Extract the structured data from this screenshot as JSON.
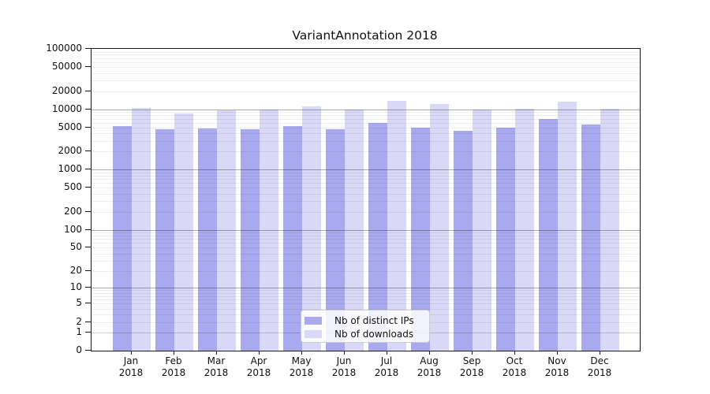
{
  "title": "VariantAnnotation 2018",
  "colors": {
    "distinct_ips": "#a9a9f0",
    "downloads": "#d9d9f7",
    "grid_major": "rgba(0,0,0,0.32)",
    "grid_major_base": "rgba(0,0,0,0.18)",
    "grid_minor": "rgba(60,60,60,0.09)",
    "frame": "#1a1a1a"
  },
  "legend": {
    "items": [
      {
        "label": "Nb of distinct IPs",
        "color": "#a9a9f0"
      },
      {
        "label": "Nb of downloads",
        "color": "#d9d9f7"
      }
    ]
  },
  "axis": {
    "yticks": [
      0,
      1,
      2,
      5,
      10,
      20,
      50,
      100,
      200,
      500,
      1000,
      2000,
      5000,
      10000,
      20000,
      50000,
      100000
    ],
    "year": "2018"
  },
  "chart_data": {
    "type": "bar",
    "title": "VariantAnnotation 2018",
    "categories": [
      "Jan",
      "Feb",
      "Mar",
      "Apr",
      "May",
      "Jun",
      "Jul",
      "Aug",
      "Sep",
      "Oct",
      "Nov",
      "Dec"
    ],
    "year": "2018",
    "series": [
      {
        "name": "Nb of distinct IPs",
        "values": [
          5200,
          4600,
          4850,
          4700,
          5200,
          4600,
          5900,
          4950,
          4400,
          4950,
          6900,
          5600
        ]
      },
      {
        "name": "Nb of downloads",
        "values": [
          10400,
          8400,
          9500,
          10000,
          11100,
          9900,
          13700,
          12200,
          10000,
          10300,
          13300,
          10100
        ]
      }
    ],
    "yscale": "log(v+1)",
    "ylim": [
      0,
      100000
    ],
    "yticks": [
      0,
      1,
      2,
      5,
      10,
      20,
      50,
      100,
      200,
      500,
      1000,
      2000,
      5000,
      10000,
      20000,
      50000,
      100000
    ],
    "grid": true,
    "legend_position": "lower center",
    "xlabel": "",
    "ylabel": ""
  }
}
